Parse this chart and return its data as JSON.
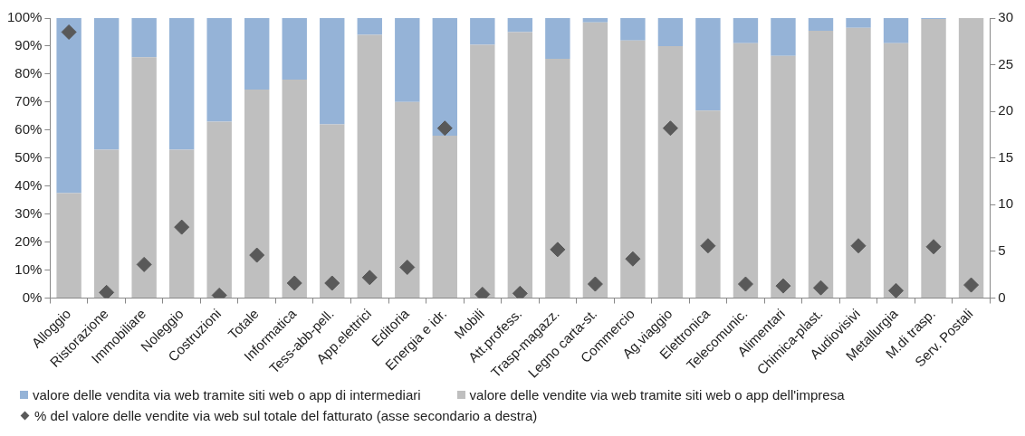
{
  "chart_data": {
    "type": "bar",
    "stacked": true,
    "categories": [
      "Alloggio",
      "Ristorazione",
      "Immobiliare",
      "Noleggio",
      "Costruzioni",
      "Totale",
      "Informatica",
      "Tess-abb-pell.",
      "App.elettrici",
      "Editoria",
      "Energia e idr.",
      "Mobili",
      "Att.profess.",
      "Trasp-magazz.",
      "Legno carta-st.",
      "Commercio",
      "Ag.viaggio",
      "Elettronica",
      "Telecomunic.",
      "Alimentari",
      "Chimica-plast.",
      "Audiovisivi",
      "Metallurgia",
      "M.di trasp.",
      "Serv. Postali"
    ],
    "series": [
      {
        "name": "valore delle vendite via web tramite siti web o app dell'impresa",
        "color": "#bfbfbf",
        "values": [
          37.5,
          53,
          86,
          53,
          63,
          74.5,
          78,
          62,
          94,
          70,
          58,
          90.5,
          95,
          85.5,
          98.5,
          92,
          90,
          67,
          91,
          86.5,
          95.5,
          96.5,
          91,
          99.7,
          100
        ]
      },
      {
        "name": "valore delle vendita via web tramite siti web o app di intermediari",
        "color": "#95b3d7",
        "values": [
          62.5,
          47,
          14,
          47,
          37,
          25.5,
          22,
          38,
          6,
          30,
          42,
          9.5,
          5,
          14.5,
          1.5,
          8,
          10,
          33,
          9,
          13.5,
          4.5,
          3.5,
          9,
          0.3,
          0
        ]
      },
      {
        "name": "% del valore delle vendite via web sul totale del fatturato (asse secondario a destra)",
        "type": "scatter",
        "axis": "y2",
        "marker": "diamond",
        "color": "#595959",
        "values": [
          28.5,
          0.6,
          3.6,
          7.6,
          0.3,
          4.6,
          1.6,
          1.6,
          2.2,
          3.3,
          18.2,
          0.4,
          0.5,
          5.2,
          1.5,
          4.2,
          18.2,
          5.6,
          1.5,
          1.3,
          1.1,
          5.6,
          0.8,
          5.5,
          1.4
        ]
      }
    ],
    "ylim": [
      0,
      100
    ],
    "yticks": [
      {
        "value": 0,
        "label": "0%"
      },
      {
        "value": 10,
        "label": "10%"
      },
      {
        "value": 20,
        "label": "20%"
      },
      {
        "value": 30,
        "label": "30%"
      },
      {
        "value": 40,
        "label": "40%"
      },
      {
        "value": 50,
        "label": "50%"
      },
      {
        "value": 60,
        "label": "60%"
      },
      {
        "value": 70,
        "label": "70%"
      },
      {
        "value": 80,
        "label": "80%"
      },
      {
        "value": 90,
        "label": "90%"
      },
      {
        "value": 100,
        "label": "100%"
      }
    ],
    "y2lim": [
      0,
      30
    ],
    "y2ticks": [
      0,
      5,
      10,
      15,
      20,
      25,
      30
    ],
    "grid": false,
    "legend": "bottom"
  }
}
